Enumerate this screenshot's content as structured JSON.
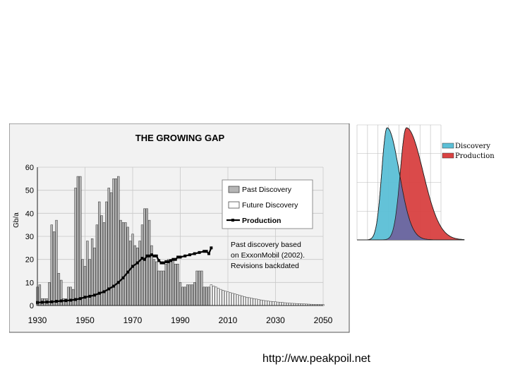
{
  "chart_data": [
    {
      "type": "bar",
      "title": "THE GROWING GAP",
      "ylabel": "Gb/a",
      "xlabel": "",
      "xlim": [
        1930,
        2050
      ],
      "ylim": [
        0,
        60
      ],
      "x_ticks": [
        "1930",
        "1950",
        "1970",
        "1990",
        "2010",
        "2030",
        "2050"
      ],
      "y_ticks": [
        "0",
        "10",
        "20",
        "30",
        "40",
        "50",
        "60"
      ],
      "grid": true,
      "legend": "top-right",
      "legend_entries": [
        "Past Discovery",
        "Future Discovery",
        "Production"
      ],
      "annotation": [
        "Past discovery based",
        "on ExxonMobil (2002).",
        "Revisions backdated"
      ],
      "series": [
        {
          "name": "Past Discovery",
          "type": "bar",
          "x": [
            1930,
            1931,
            1932,
            1933,
            1934,
            1935,
            1936,
            1937,
            1938,
            1939,
            1940,
            1941,
            1942,
            1943,
            1944,
            1945,
            1946,
            1947,
            1948,
            1949,
            1950,
            1951,
            1952,
            1953,
            1954,
            1955,
            1956,
            1957,
            1958,
            1959,
            1960,
            1961,
            1962,
            1963,
            1964,
            1965,
            1966,
            1967,
            1968,
            1969,
            1970,
            1971,
            1972,
            1973,
            1974,
            1975,
            1976,
            1977,
            1978,
            1979,
            1980,
            1981,
            1982,
            1983,
            1984,
            1985,
            1986,
            1987,
            1988,
            1989,
            1990,
            1991,
            1992,
            1993,
            1994,
            1995,
            1996,
            1997,
            1998,
            1999,
            2000,
            2001,
            2002
          ],
          "values": [
            8,
            9,
            3,
            3,
            3,
            10,
            35,
            32,
            37,
            14,
            11,
            3,
            3,
            8,
            8,
            7,
            51,
            56,
            56,
            20,
            17,
            28,
            20,
            29,
            25,
            35,
            45,
            39,
            36,
            45,
            51,
            49,
            55,
            55,
            56,
            37,
            36,
            36,
            34,
            28,
            31,
            26,
            25,
            28,
            35,
            42,
            42,
            37,
            26,
            20,
            19,
            15,
            15,
            15,
            18,
            20,
            20,
            20,
            18,
            18,
            10,
            8,
            8,
            9,
            9,
            9,
            10,
            15,
            15,
            15,
            8,
            8,
            8
          ]
        },
        {
          "name": "Future Discovery",
          "type": "bar",
          "x": [
            2003,
            2004,
            2005,
            2006,
            2007,
            2008,
            2009,
            2010,
            2011,
            2012,
            2013,
            2014,
            2015,
            2016,
            2017,
            2018,
            2019,
            2020,
            2021,
            2022,
            2023,
            2024,
            2025,
            2026,
            2027,
            2028,
            2029,
            2030,
            2031,
            2032,
            2033,
            2034,
            2035,
            2036,
            2037,
            2038,
            2039,
            2040,
            2041,
            2042,
            2043,
            2044,
            2045,
            2046,
            2047,
            2048,
            2049,
            2050
          ],
          "values": [
            9,
            8.5,
            8,
            7.5,
            7,
            6.6,
            6.2,
            5.9,
            5.6,
            5.3,
            5,
            4.7,
            4.4,
            4.1,
            3.9,
            3.6,
            3.4,
            3.2,
            3,
            2.8,
            2.6,
            2.4,
            2.2,
            2.1,
            1.9,
            1.8,
            1.7,
            1.6,
            1.5,
            1.4,
            1.3,
            1.2,
            1.1,
            1,
            0.95,
            0.9,
            0.85,
            0.8,
            0.75,
            0.7,
            0.65,
            0.6,
            0.55,
            0.5,
            0.5,
            0.45,
            0.45,
            0.4
          ]
        },
        {
          "name": "Production",
          "type": "line",
          "x": [
            1930,
            1932,
            1934,
            1936,
            1938,
            1940,
            1942,
            1944,
            1946,
            1948,
            1950,
            1952,
            1954,
            1956,
            1958,
            1960,
            1962,
            1964,
            1966,
            1968,
            1970,
            1972,
            1974,
            1975,
            1976,
            1977,
            1978,
            1979,
            1980,
            1981,
            1982,
            1983,
            1984,
            1985,
            1986,
            1987,
            1988,
            1989,
            1990,
            1992,
            1994,
            1996,
            1998,
            2000,
            2001,
            2002,
            2003
          ],
          "values": [
            1.3,
            1.4,
            1.5,
            1.6,
            1.8,
            2,
            2.1,
            2.3,
            2.6,
            3,
            3.6,
            4,
            4.5,
            5.3,
            6,
            7.2,
            8.4,
            10,
            12,
            14.5,
            17,
            18.5,
            20.5,
            20,
            21.5,
            21.5,
            22,
            21.5,
            21.5,
            19.5,
            18.5,
            18.5,
            19,
            19,
            19.5,
            20,
            20,
            21,
            21,
            21.5,
            22,
            22.5,
            23,
            23.5,
            23.5,
            22.5,
            25
          ]
        }
      ]
    },
    {
      "type": "area",
      "title": "",
      "xlabel": "",
      "ylabel": "",
      "legend": "right",
      "legend_entries": [
        "Discovery",
        "Production"
      ],
      "colors": {
        "Discovery": "#5bbfd6",
        "Production": "#d94141",
        "overlap": "#6e6aa2"
      },
      "series": [
        {
          "name": "Discovery",
          "peak_x": 0.28,
          "peak_y": 1.0
        },
        {
          "name": "Production",
          "peak_x": 0.46,
          "peak_y": 1.0
        }
      ]
    }
  ],
  "caption": "http://ww.peakpoil.net"
}
